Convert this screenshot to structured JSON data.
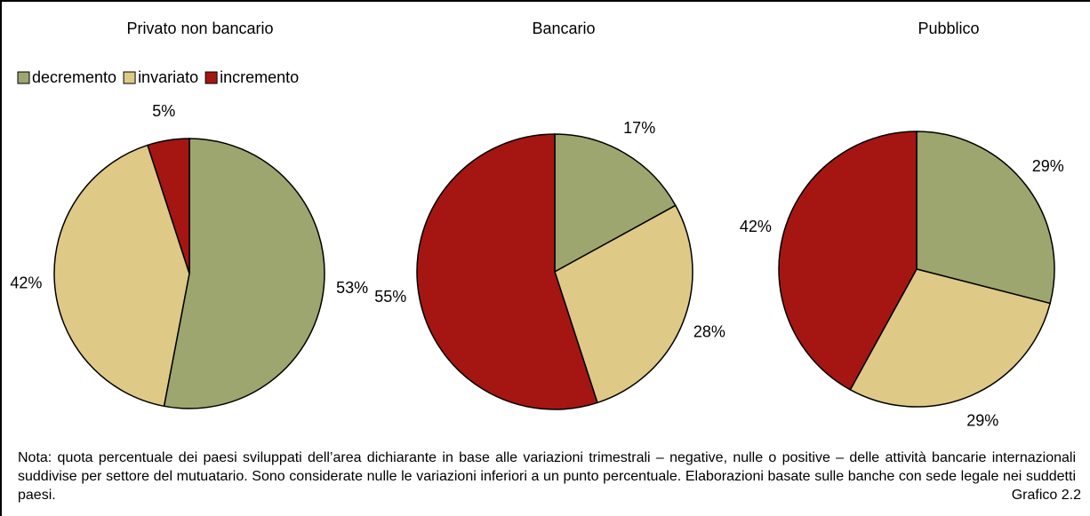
{
  "chart_data": [
    {
      "type": "pie",
      "title": "Privato non bancario",
      "categories": [
        "decremento",
        "invariato",
        "incremento"
      ],
      "colors": [
        "#9ca66e",
        "#dfc986",
        "#a51612"
      ],
      "values": [
        53,
        42,
        5
      ],
      "value_labels": [
        "53%",
        "42%",
        "5%"
      ]
    },
    {
      "type": "pie",
      "title": "Bancario",
      "colors": [
        "#9ca66e",
        "#dfc986",
        "#a51612"
      ],
      "values": [
        17,
        28,
        55
      ],
      "value_labels": [
        "17%",
        "28%",
        "55%"
      ]
    },
    {
      "type": "pie",
      "title": "Pubblico",
      "colors": [
        "#9ca66e",
        "#dfc986",
        "#a51612"
      ],
      "values": [
        29,
        29,
        42
      ],
      "value_labels": [
        "29%",
        "29%",
        "42%"
      ]
    }
  ],
  "note": "Nota: quota percentuale dei paesi sviluppati dell’area dichiarante in base alle variazioni trimestrali – negative, nulle o positive – delle attività bancarie internazionali suddivise per settore del mutuatario. Sono considerate nulle le variazioni inferiori a un punto percentuale. Elaborazioni basate sulle banche con sede legale nei suddetti paesi.",
  "figure_label": "Grafico 2.2"
}
